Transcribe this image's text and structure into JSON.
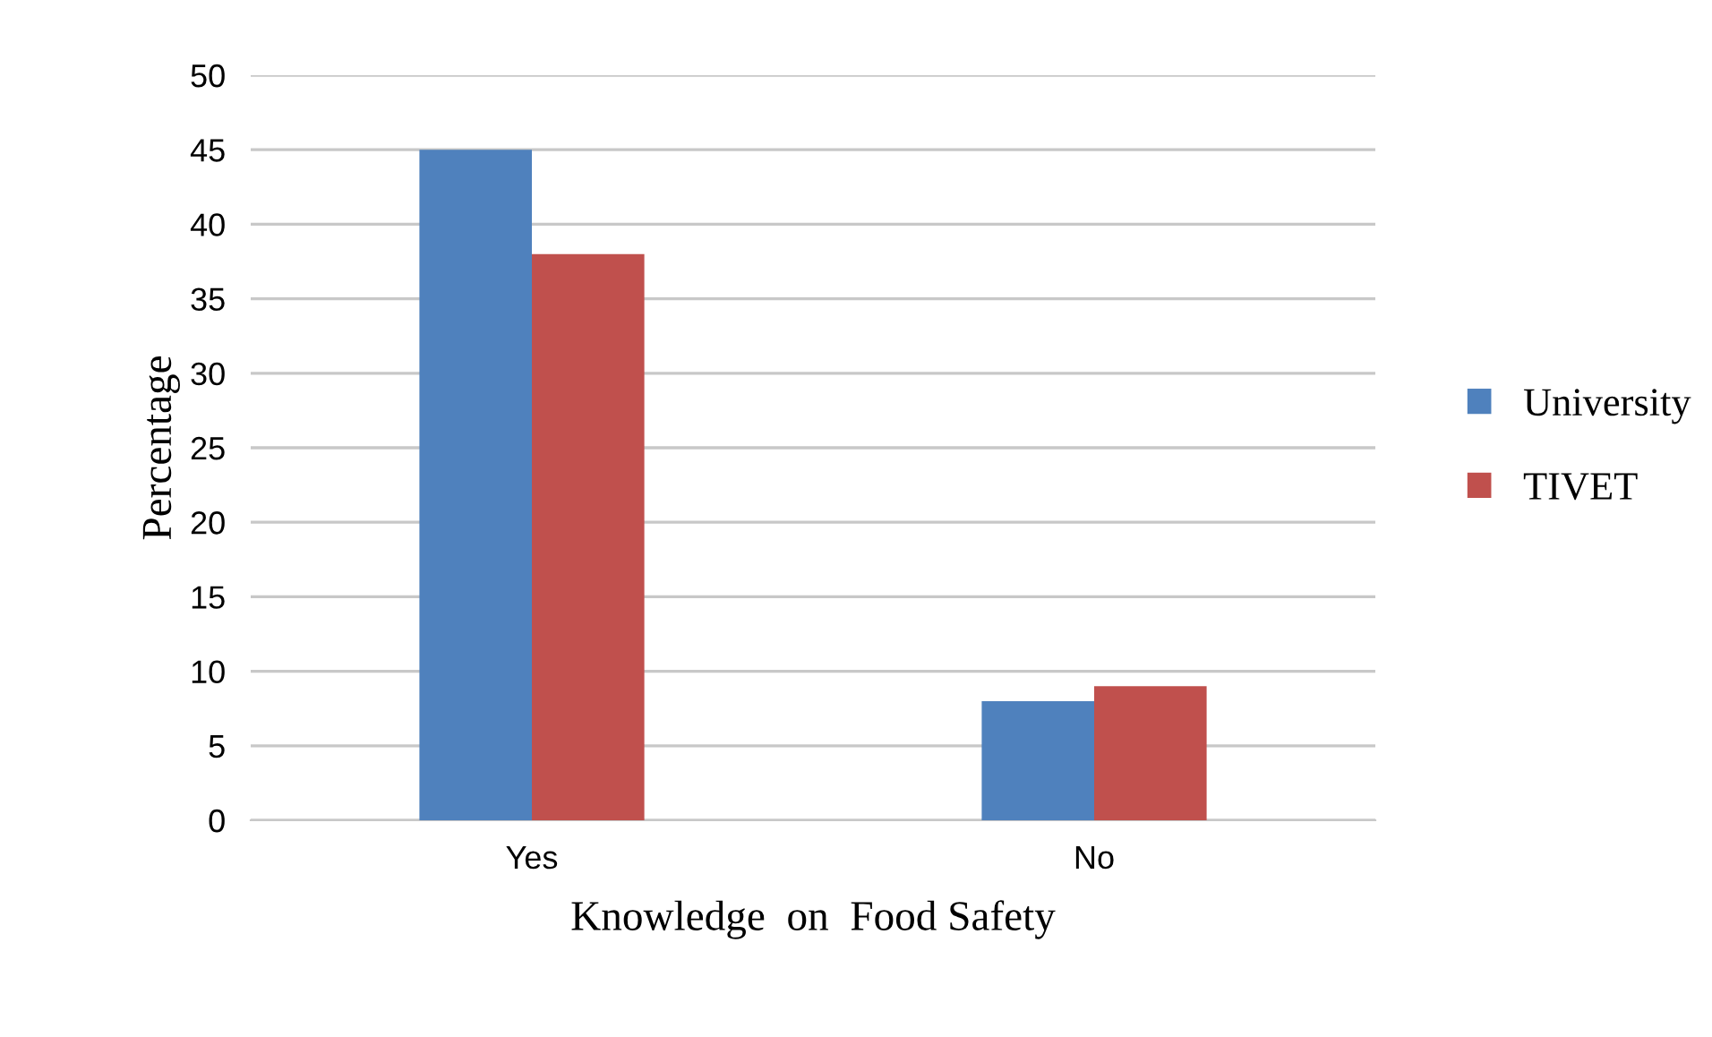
{
  "chart_data": {
    "type": "bar",
    "xlabel": "Knowledge  on  Food Safety",
    "ylabel": "Percentage",
    "categories": [
      "Yes",
      "No"
    ],
    "series": [
      {
        "name": "University",
        "color": "#4f81bd",
        "values": [
          45,
          8
        ]
      },
      {
        "name": "TIVET",
        "color": "#c0504d",
        "values": [
          38,
          9
        ]
      }
    ],
    "ylim": [
      0,
      50
    ],
    "yticks": [
      0,
      5,
      10,
      15,
      20,
      25,
      30,
      35,
      40,
      45,
      50
    ],
    "grid": "y",
    "legend": "right"
  }
}
